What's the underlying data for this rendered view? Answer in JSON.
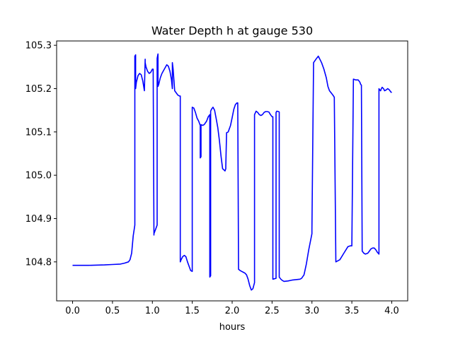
{
  "chart_data": {
    "type": "line",
    "title": "Water Depth h at gauge 530",
    "xlabel": "hours",
    "ylabel": "",
    "xlim": [
      -0.2,
      4.2
    ],
    "ylim": [
      104.71,
      105.31
    ],
    "xticks": [
      0.0,
      0.5,
      1.0,
      1.5,
      2.0,
      2.5,
      3.0,
      3.5,
      4.0
    ],
    "xtick_labels": [
      "0.0",
      "0.5",
      "1.0",
      "1.5",
      "2.0",
      "2.5",
      "3.0",
      "3.5",
      "4.0"
    ],
    "yticks": [
      104.8,
      104.9,
      105.0,
      105.1,
      105.2,
      105.3
    ],
    "ytick_labels": [
      "104.8",
      "104.9",
      "105.0",
      "105.1",
      "105.2",
      "105.3"
    ],
    "grid": false,
    "legend": "none",
    "series": [
      {
        "color": "#0000ff",
        "x": [
          0.0,
          0.2,
          0.4,
          0.5,
          0.6,
          0.65,
          0.7,
          0.72,
          0.74,
          0.76,
          0.78,
          0.78,
          0.79,
          0.79,
          0.8,
          0.82,
          0.84,
          0.86,
          0.88,
          0.9,
          0.91,
          0.91,
          0.92,
          0.94,
          0.96,
          0.98,
          1.0,
          1.01,
          1.02,
          1.02,
          1.04,
          1.06,
          1.06,
          1.07,
          1.07,
          1.08,
          1.1,
          1.12,
          1.15,
          1.18,
          1.2,
          1.22,
          1.24,
          1.25,
          1.25,
          1.26,
          1.27,
          1.28,
          1.3,
          1.32,
          1.34,
          1.35,
          1.35,
          1.36,
          1.38,
          1.4,
          1.42,
          1.44,
          1.46,
          1.48,
          1.5,
          1.5,
          1.52,
          1.54,
          1.56,
          1.58,
          1.6,
          1.6,
          1.61,
          1.61,
          1.63,
          1.65,
          1.68,
          1.7,
          1.72,
          1.72,
          1.73,
          1.73,
          1.74,
          1.76,
          1.78,
          1.8,
          1.82,
          1.84,
          1.86,
          1.88,
          1.9,
          1.91,
          1.92,
          1.92,
          1.93,
          1.95,
          1.98,
          2.0,
          2.02,
          2.04,
          2.06,
          2.07,
          2.08,
          2.08,
          2.1,
          2.12,
          2.14,
          2.16,
          2.18,
          2.2,
          2.22,
          2.24,
          2.26,
          2.28,
          2.28,
          2.3,
          2.32,
          2.34,
          2.36,
          2.38,
          2.4,
          2.42,
          2.44,
          2.46,
          2.48,
          2.5,
          2.51,
          2.51,
          2.53,
          2.55,
          2.55,
          2.56,
          2.58,
          2.59,
          2.59,
          2.61,
          2.63,
          2.65,
          2.7,
          2.75,
          2.8,
          2.85,
          2.87,
          2.9,
          2.93,
          2.96,
          3.0,
          3.0,
          3.02,
          3.05,
          3.08,
          3.12,
          3.15,
          3.18,
          3.2,
          3.22,
          3.25,
          3.27,
          3.28,
          3.28,
          3.3,
          3.35,
          3.4,
          3.45,
          3.48,
          3.5,
          3.5,
          3.52,
          3.55,
          3.58,
          3.6,
          3.61,
          3.62,
          3.62,
          3.63,
          3.65,
          3.67,
          3.7,
          3.72,
          3.74,
          3.76,
          3.78,
          3.8,
          3.82,
          3.83,
          3.84,
          3.84,
          3.85,
          3.86,
          3.87,
          3.88,
          3.9,
          3.91,
          3.93,
          3.95,
          3.97,
          3.99,
          4.0
        ],
        "y": [
          104.792,
          104.792,
          104.793,
          104.794,
          104.795,
          104.797,
          104.8,
          104.805,
          104.82,
          104.86,
          104.885,
          105.275,
          105.278,
          105.2,
          105.215,
          105.23,
          105.235,
          105.232,
          105.218,
          105.195,
          105.268,
          105.26,
          105.25,
          105.24,
          105.235,
          105.238,
          105.245,
          105.245,
          104.862,
          104.865,
          104.875,
          104.885,
          105.27,
          105.28,
          105.205,
          105.21,
          105.225,
          105.235,
          105.245,
          105.255,
          105.252,
          105.24,
          105.22,
          105.2,
          105.26,
          105.245,
          105.22,
          105.195,
          105.19,
          105.185,
          105.183,
          105.183,
          104.8,
          104.805,
          104.812,
          104.815,
          104.812,
          104.8,
          104.79,
          104.78,
          104.778,
          105.157,
          105.155,
          105.145,
          105.132,
          105.125,
          105.115,
          105.04,
          105.043,
          105.117,
          105.115,
          105.117,
          105.125,
          105.135,
          105.14,
          104.765,
          104.768,
          105.148,
          105.152,
          105.157,
          105.15,
          105.13,
          105.11,
          105.08,
          105.045,
          105.015,
          105.012,
          105.01,
          105.015,
          105.02,
          105.098,
          105.1,
          105.115,
          105.133,
          105.152,
          105.163,
          105.167,
          105.167,
          104.785,
          104.783,
          104.78,
          104.778,
          104.776,
          104.774,
          104.77,
          104.76,
          104.745,
          104.735,
          104.738,
          104.752,
          105.14,
          105.148,
          105.145,
          105.14,
          105.138,
          105.14,
          105.145,
          105.147,
          105.147,
          105.146,
          105.14,
          105.135,
          105.135,
          104.76,
          104.761,
          104.762,
          105.145,
          105.148,
          105.147,
          105.146,
          104.765,
          104.76,
          104.757,
          104.755,
          104.756,
          104.758,
          104.759,
          104.76,
          104.762,
          104.77,
          104.795,
          104.828,
          104.865,
          104.875,
          105.26,
          105.268,
          105.275,
          105.26,
          105.245,
          105.225,
          105.205,
          105.195,
          105.188,
          105.183,
          105.18,
          105.18,
          104.8,
          104.805,
          104.82,
          104.835,
          104.837,
          104.837,
          104.838,
          105.222,
          105.22,
          105.22,
          105.215,
          105.21,
          105.208,
          105.208,
          104.825,
          104.82,
          104.818,
          104.82,
          104.825,
          104.83,
          104.832,
          104.832,
          104.828,
          104.822,
          104.82,
          104.818,
          105.2,
          105.197,
          105.195,
          105.2,
          105.203,
          105.199,
          105.195,
          105.197,
          105.2,
          105.197,
          105.192,
          105.191
        ]
      }
    ]
  }
}
